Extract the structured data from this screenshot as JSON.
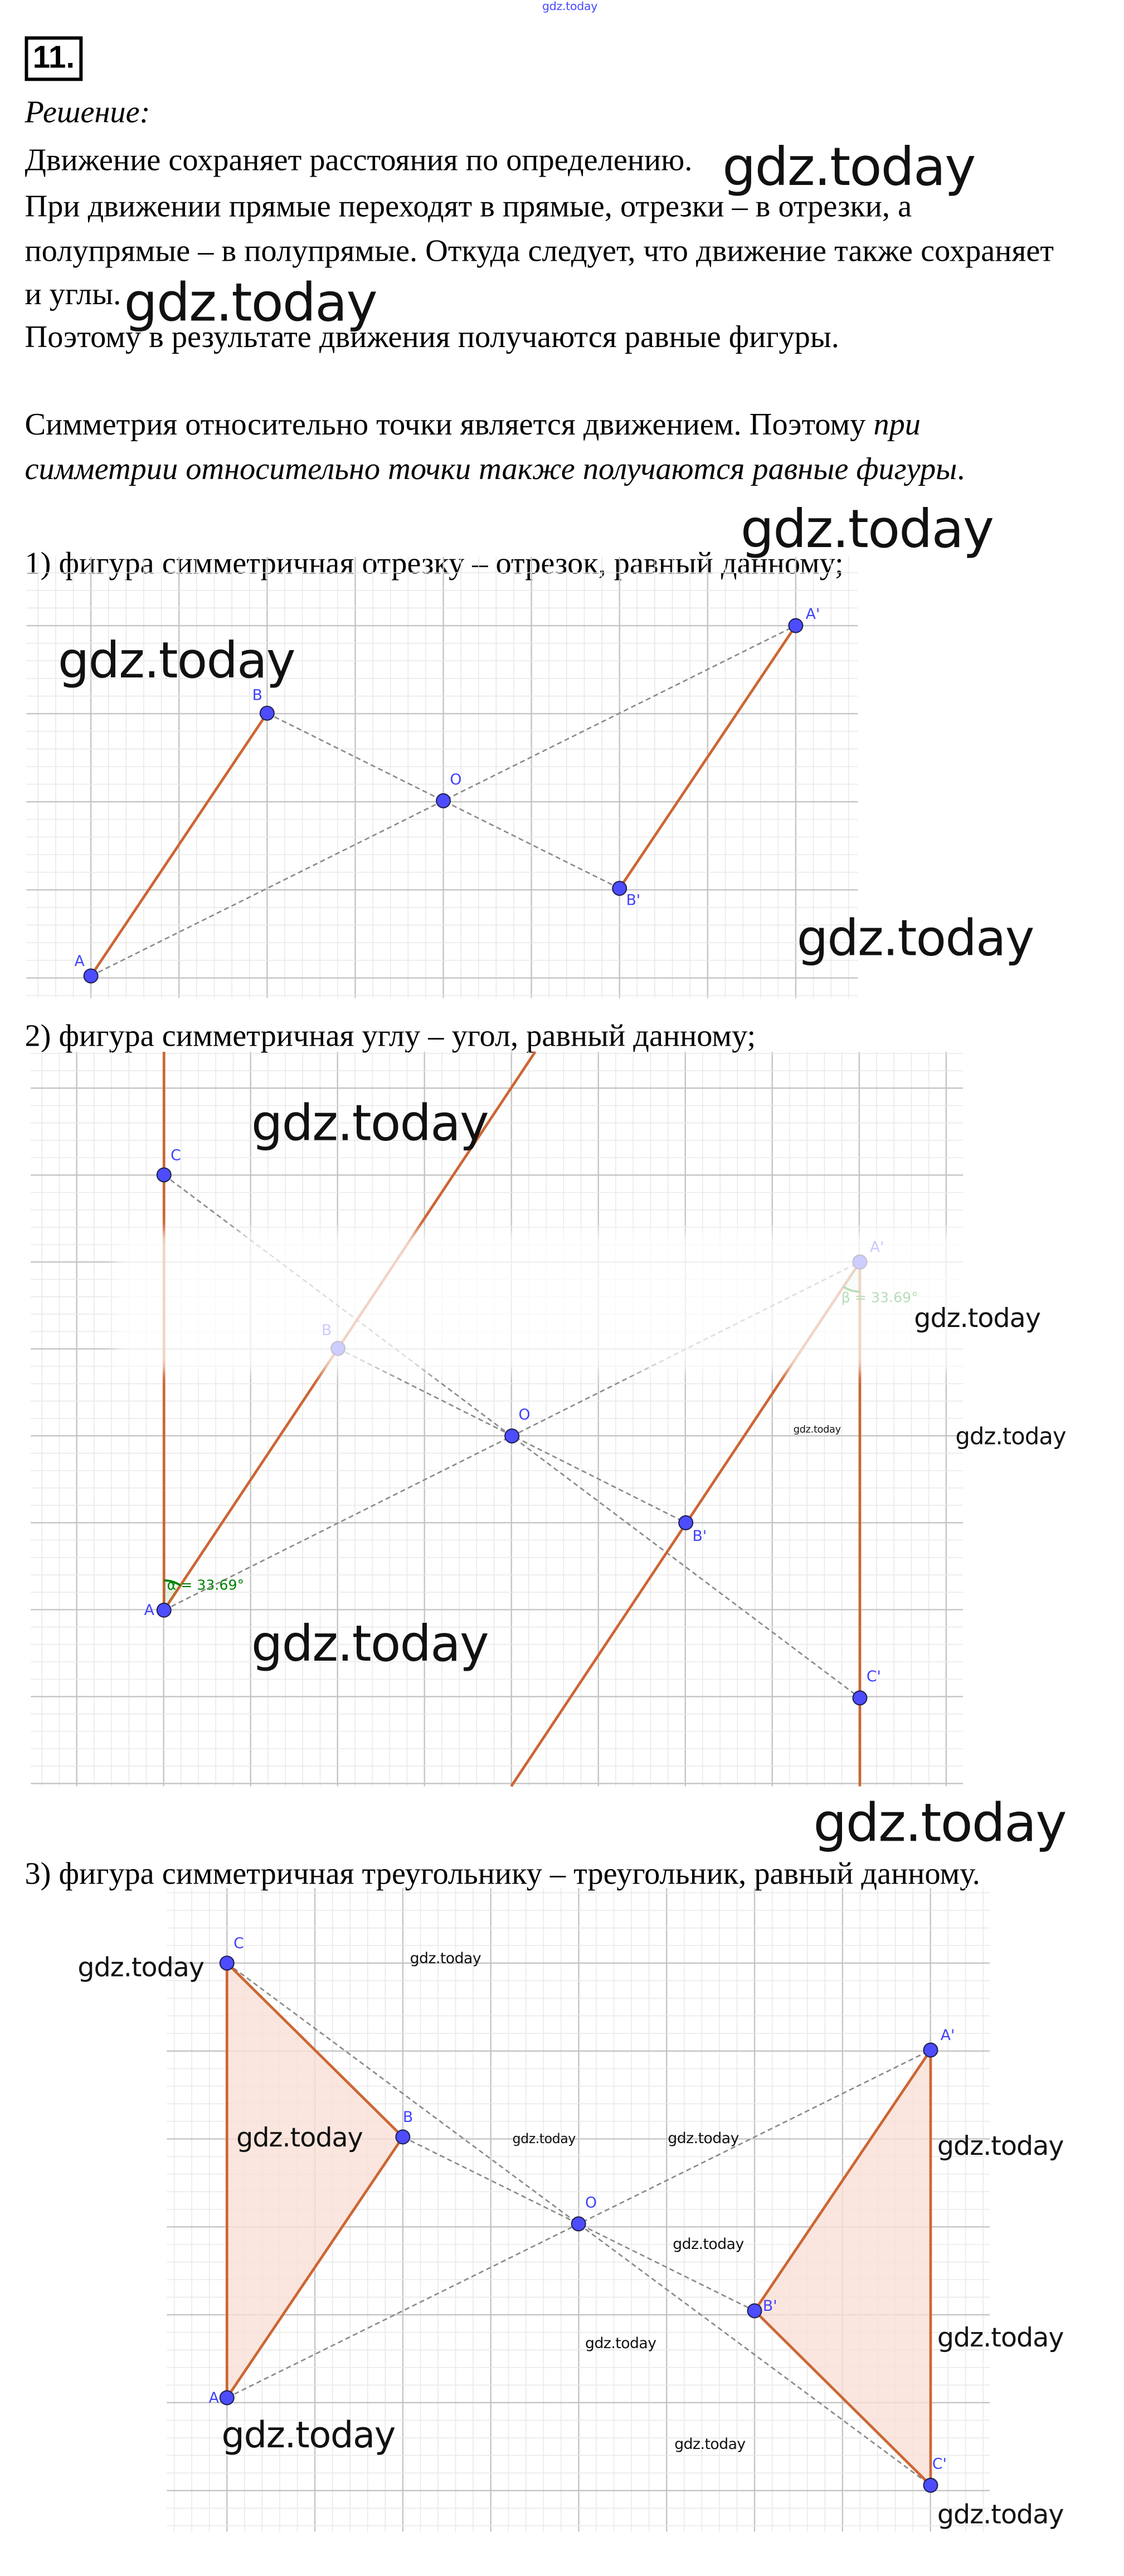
{
  "problem_number": "11.",
  "solution_label": "Решение:",
  "paragraphs": [
    "Движение сохраняет расстояния по определению.",
    "При движении прямые переходят в прямые, отрезки – в отрезки, а",
    "полупрямые – в полупрямые. Откуда следует, что движение также сохраняет",
    "и углы.",
    "Поэтому в результате движения получаются равные фигуры."
  ],
  "symmetry_text": {
    "line1_plain": "Симметрия относительно точки является движением. Поэтому ",
    "line1_italic": "при",
    "line2_italic": "симметрии относительно точки также получаются равные фигуры",
    "line2_end": "."
  },
  "cases": [
    {
      "caption": "1) фигура симметричная отрезку – отрезок, равный данному;",
      "labels": {
        "A": "A",
        "B": "B",
        "O": "O",
        "A1": "A'",
        "B1": "B'"
      }
    },
    {
      "caption": "2) фигура симметричная углу – угол, равный данному;",
      "labels": {
        "A": "A",
        "B": "B",
        "C": "C",
        "O": "O",
        "A1": "A'",
        "B1": "B'",
        "C1": "C'"
      },
      "angles": {
        "alpha": "α = 33.69°",
        "beta": "β = 33.69°"
      }
    },
    {
      "caption": "3) фигура симметричная треугольнику – треугольник, равный данному.",
      "labels": {
        "A": "A",
        "B": "B",
        "C": "C",
        "O": "O",
        "A1": "A'",
        "B1": "B'",
        "C1": "C'"
      }
    }
  ],
  "watermark": "gdz.today",
  "colors": {
    "segment": "#cc6633",
    "point": "#4d4dff",
    "label": "#4040ff",
    "angle": "#008000",
    "triangle_fill": "#f9e0d6",
    "grid_major": "#c4c4c4",
    "grid_minor": "#e8e8e8",
    "dashed": "#8a8a8a"
  }
}
